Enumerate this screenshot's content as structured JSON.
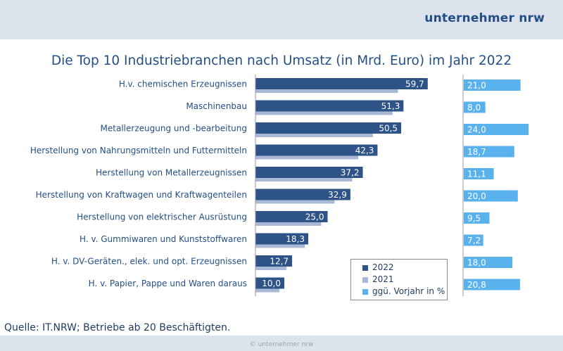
{
  "brand": "unternehmer nrw",
  "copyright": "© unternehmer nrw",
  "source": "Quelle: IT.NRW; Betriebe ab 20 Beschäftigten.",
  "colors": {
    "y2022": "#2e5387",
    "y2021": "#a9b8d6",
    "change": "#5ab2ec",
    "text": "#244f86"
  },
  "chart_data": {
    "type": "bar",
    "orientation": "horizontal",
    "title": "Die Top 10 Industriebranchen nach Umsatz (in Mrd. Euro) im Jahr 2022",
    "categories": [
      "H.v. chemischen Erzeugnissen",
      "Maschinenbau",
      "Metallerzeugung und -bearbeitung",
      "Herstellung von Nahrungsmitteln und Futtermitteln",
      "Herstellung von Metallerzeugnissen",
      "Herstellung von Kraftwagen und Kraftwagenteilen",
      "Herstellung von elektrischer Ausrüstung",
      "H. v. Gummiwaren und Kunststoffwaren",
      "H. v. DV-Geräten., elek. und opt. Erzeugnissen",
      "H. v. Papier, Pappe und Waren daraus"
    ],
    "series": [
      {
        "name": "2022",
        "values": [
          59.7,
          51.3,
          50.5,
          42.3,
          37.2,
          32.9,
          25.0,
          18.3,
          12.7,
          10.0
        ],
        "labels": [
          "59,7",
          "51,3",
          "50,5",
          "42,3",
          "37,2",
          "32,9",
          "25,0",
          "18,3",
          "12,7",
          "10,0"
        ]
      },
      {
        "name": "2021",
        "values": [
          49.4,
          47.5,
          40.7,
          35.6,
          33.5,
          27.4,
          22.8,
          17.1,
          10.8,
          8.3
        ]
      },
      {
        "name": "ggü. Vorjahr in %",
        "values": [
          21.0,
          8.0,
          24.0,
          18.7,
          11.1,
          20.0,
          9.5,
          7.2,
          18.0,
          20.8
        ],
        "labels": [
          "21,0",
          "8,0",
          "24,0",
          "18,7",
          "11,1",
          "20,0",
          "9,5",
          "7,2",
          "18,0",
          "20,8"
        ]
      }
    ],
    "legend_position": "bottom-right",
    "grid": false
  }
}
